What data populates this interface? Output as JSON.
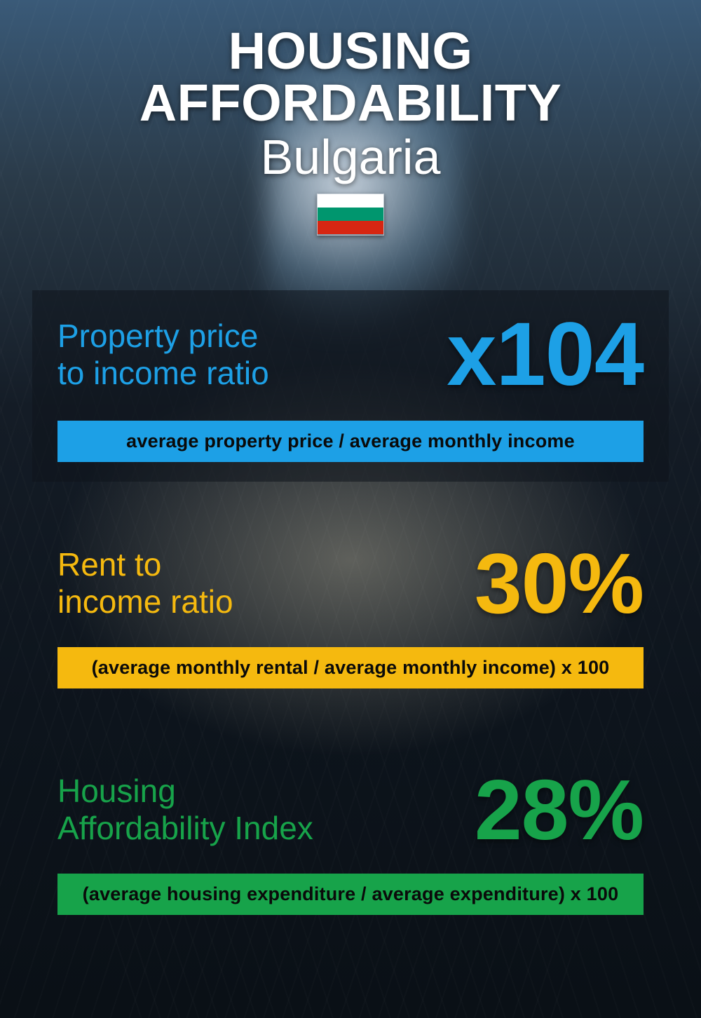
{
  "header": {
    "title": "HOUSING AFFORDABILITY",
    "subtitle": "Bulgaria",
    "flag_colors": {
      "top": "#ffffff",
      "middle": "#00966e",
      "bottom": "#d62612"
    }
  },
  "metrics": [
    {
      "key": "price_to_income",
      "label": "Property price\nto income ratio",
      "value": "x104",
      "formula": "average property price / average monthly income",
      "accent_color": "#1da0e6",
      "value_fontsize": 128,
      "has_card_bg": true
    },
    {
      "key": "rent_to_income",
      "label": "Rent to\nincome ratio",
      "value": "30%",
      "formula": "(average monthly rental / average monthly income) x 100",
      "accent_color": "#f5b90f",
      "value_fontsize": 122,
      "has_card_bg": false
    },
    {
      "key": "affordability_index",
      "label": "Housing\nAffordability Index",
      "value": "28%",
      "formula": "(average housing expenditure / average expenditure) x 100",
      "accent_color": "#17a34a",
      "value_fontsize": 122,
      "has_card_bg": false
    }
  ],
  "style": {
    "title_color": "#ffffff",
    "title_fontsize": 74,
    "subtitle_fontsize": 70,
    "label_fontsize": 46,
    "formula_fontsize": 27,
    "formula_text_color": "#0a0a0a",
    "card_bg": "rgba(15,20,28,0.55)",
    "background_gradient_top": "#3a5a78",
    "background_gradient_bottom": "#0a1016"
  }
}
